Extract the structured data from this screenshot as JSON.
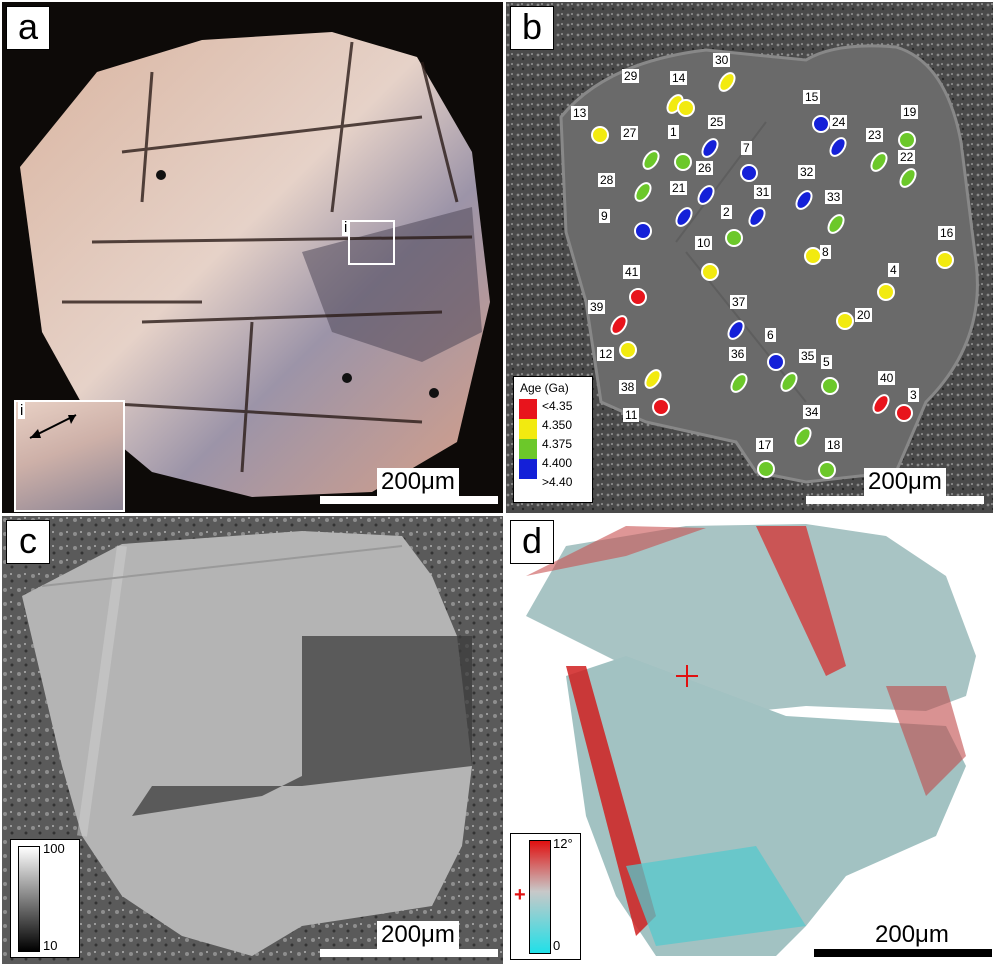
{
  "panels": {
    "a": {
      "label": "a",
      "scale": "200μm",
      "inset": "i",
      "box": "i"
    },
    "b": {
      "label": "b",
      "scale": "200μm"
    },
    "c": {
      "label": "c",
      "scale": "200μm",
      "cbar_max": "100",
      "cbar_min": "10"
    },
    "d": {
      "label": "d",
      "scale": "200μm",
      "cbar_max": "12°",
      "cbar_min": "0",
      "cross": "+"
    }
  },
  "legend_b": {
    "title": "Age (Ga)",
    "items": [
      {
        "label": "<4.35",
        "color": "#e8141c"
      },
      {
        "label": "4.350",
        "color": "#f2ea10"
      },
      {
        "label": "4.375",
        "color": "#6cc82a"
      },
      {
        "label": "4.400",
        "color": "#1420d8"
      },
      {
        "label": ">4.40",
        "color": "#1420d8"
      }
    ]
  },
  "spots": [
    {
      "n": "30",
      "c": "yellow"
    },
    {
      "n": "29",
      "c": "yellow"
    },
    {
      "n": "14",
      "c": "yellow"
    },
    {
      "n": "13",
      "c": "yellow"
    },
    {
      "n": "27",
      "c": "green"
    },
    {
      "n": "1",
      "c": "green"
    },
    {
      "n": "25",
      "c": "blue"
    },
    {
      "n": "7",
      "c": "blue"
    },
    {
      "n": "15",
      "c": "blue"
    },
    {
      "n": "24",
      "c": "blue"
    },
    {
      "n": "19",
      "c": "green"
    },
    {
      "n": "23",
      "c": "green"
    },
    {
      "n": "22",
      "c": "green"
    },
    {
      "n": "28",
      "c": "green"
    },
    {
      "n": "26",
      "c": "blue"
    },
    {
      "n": "21",
      "c": "blue"
    },
    {
      "n": "31",
      "c": "blue"
    },
    {
      "n": "32",
      "c": "blue"
    },
    {
      "n": "33",
      "c": "green"
    },
    {
      "n": "9",
      "c": "blue"
    },
    {
      "n": "2",
      "c": "green"
    },
    {
      "n": "16",
      "c": "yellow"
    },
    {
      "n": "10",
      "c": "yellow"
    },
    {
      "n": "8",
      "c": "yellow"
    },
    {
      "n": "41",
      "c": "red"
    },
    {
      "n": "4",
      "c": "yellow"
    },
    {
      "n": "39",
      "c": "red"
    },
    {
      "n": "37",
      "c": "blue"
    },
    {
      "n": "20",
      "c": "yellow"
    },
    {
      "n": "12",
      "c": "yellow"
    },
    {
      "n": "6",
      "c": "blue"
    },
    {
      "n": "36",
      "c": "green"
    },
    {
      "n": "35",
      "c": "green"
    },
    {
      "n": "5",
      "c": "green"
    },
    {
      "n": "38",
      "c": "yellow"
    },
    {
      "n": "40",
      "c": "red"
    },
    {
      "n": "11",
      "c": "red"
    },
    {
      "n": "3",
      "c": "red"
    },
    {
      "n": "34",
      "c": "green"
    },
    {
      "n": "17",
      "c": "green"
    },
    {
      "n": "18",
      "c": "green"
    }
  ]
}
